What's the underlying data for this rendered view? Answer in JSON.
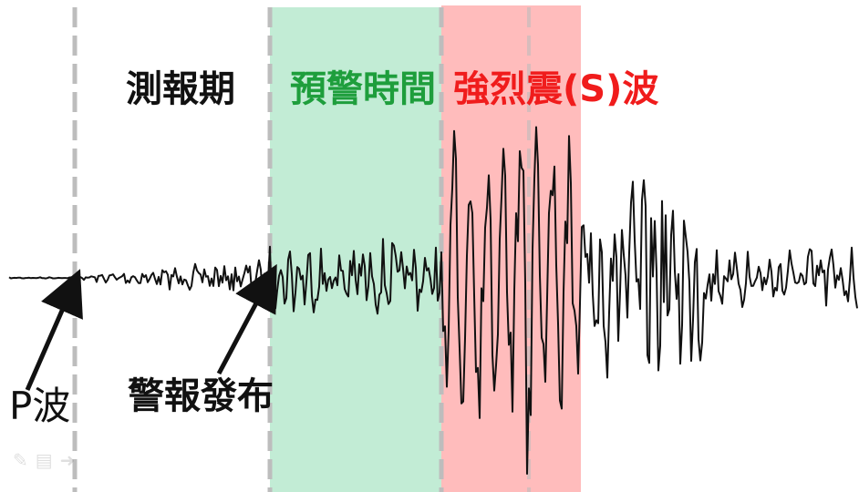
{
  "labels": {
    "monitoring_period": "測報期",
    "warning_time": "預警時間",
    "strong_shaking": "強烈震(S)波",
    "p_wave": "P波",
    "alert_issued": "警報發布"
  },
  "colors": {
    "warning_zone": "#c2ecd5",
    "strong_zone": "#ffbcbc",
    "warning_text": "#1e9e3c",
    "strong_text": "#f01c1c",
    "divider": "#bdbdbd",
    "trace": "#111111"
  },
  "toolbar": {
    "icons": [
      "pencil-icon",
      "page-icon",
      "forward-arrow-icon"
    ],
    "glyphs": [
      "✎",
      "▤",
      "➜"
    ]
  }
}
